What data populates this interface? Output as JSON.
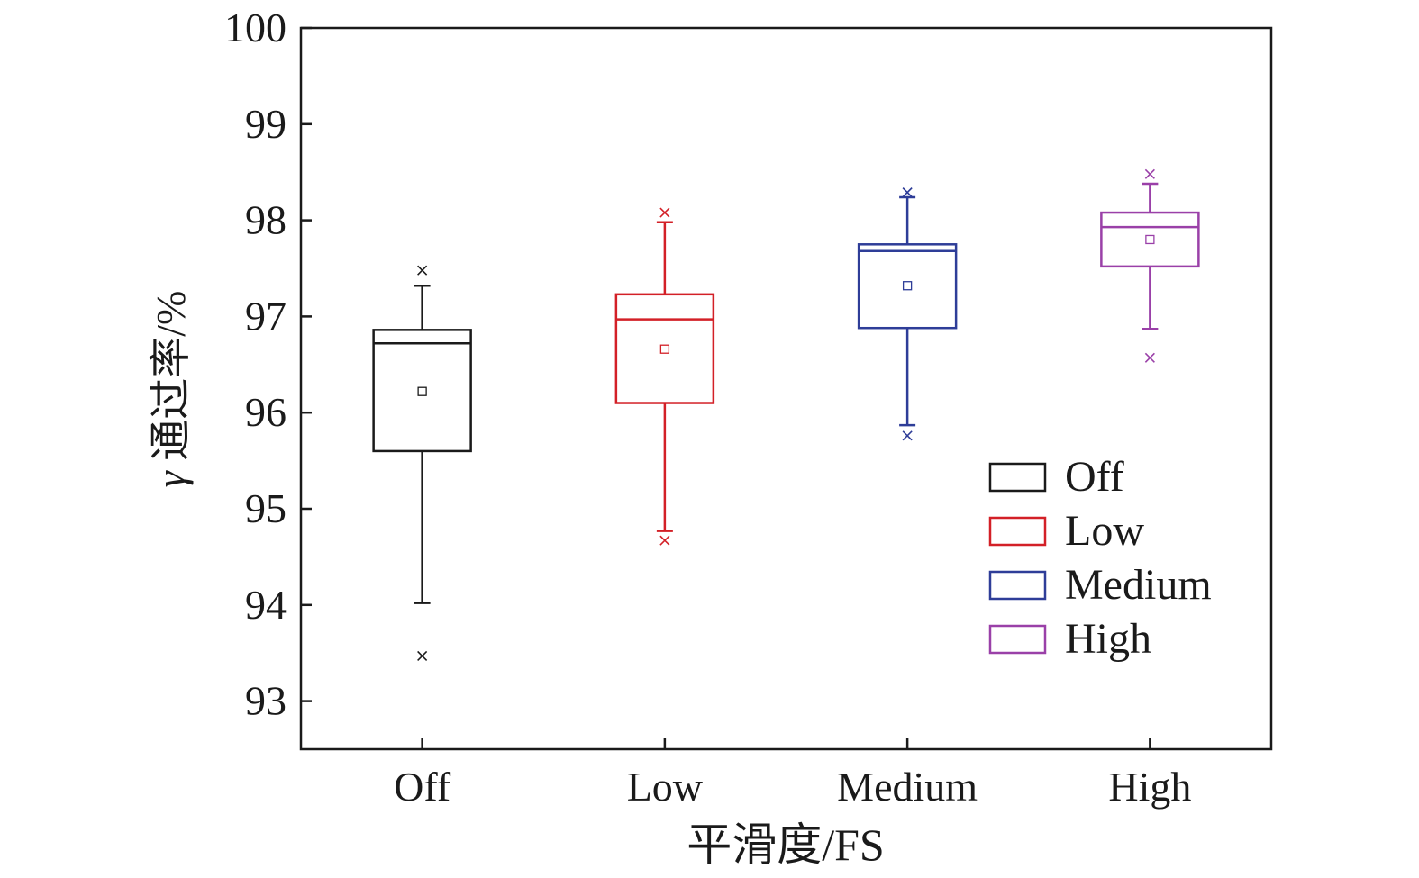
{
  "chart_data": {
    "type": "box",
    "title": "",
    "xlabel": "平滑度/FS",
    "ylabel_italic": "γ",
    "ylabel_rest": "通过率/%",
    "ylim": [
      92.5,
      100
    ],
    "yticks": [
      93,
      94,
      95,
      96,
      97,
      98,
      99,
      100
    ],
    "yticks_labels": [
      "93",
      "94",
      "95",
      "96",
      "97",
      "98",
      "99",
      "100"
    ],
    "categories": [
      "Off",
      "Low",
      "Medium",
      "High"
    ],
    "legend_position": "bottom-right",
    "series": [
      {
        "name": "Off",
        "color": "#1a1a1a",
        "q1": 95.6,
        "median": 96.72,
        "q3": 96.86,
        "mean": 96.22,
        "whisker_low": 94.02,
        "whisker_high": 97.32,
        "outlier_low": 93.47,
        "outlier_high": 97.48
      },
      {
        "name": "Low",
        "color": "#d32027",
        "q1": 96.1,
        "median": 96.97,
        "q3": 97.23,
        "mean": 96.66,
        "whisker_low": 94.77,
        "whisker_high": 97.98,
        "outlier_low": 94.67,
        "outlier_high": 98.08
      },
      {
        "name": "Medium",
        "color": "#2e3d98",
        "q1": 96.88,
        "median": 97.68,
        "q3": 97.75,
        "mean": 97.32,
        "whisker_low": 95.87,
        "whisker_high": 98.24,
        "outlier_low": 95.76,
        "outlier_high": 98.29
      },
      {
        "name": "High",
        "color": "#9a40a8",
        "q1": 97.52,
        "median": 97.93,
        "q3": 98.08,
        "mean": 97.8,
        "whisker_low": 96.87,
        "whisker_high": 98.38,
        "outlier_low": 96.57,
        "outlier_high": 98.48
      }
    ]
  }
}
